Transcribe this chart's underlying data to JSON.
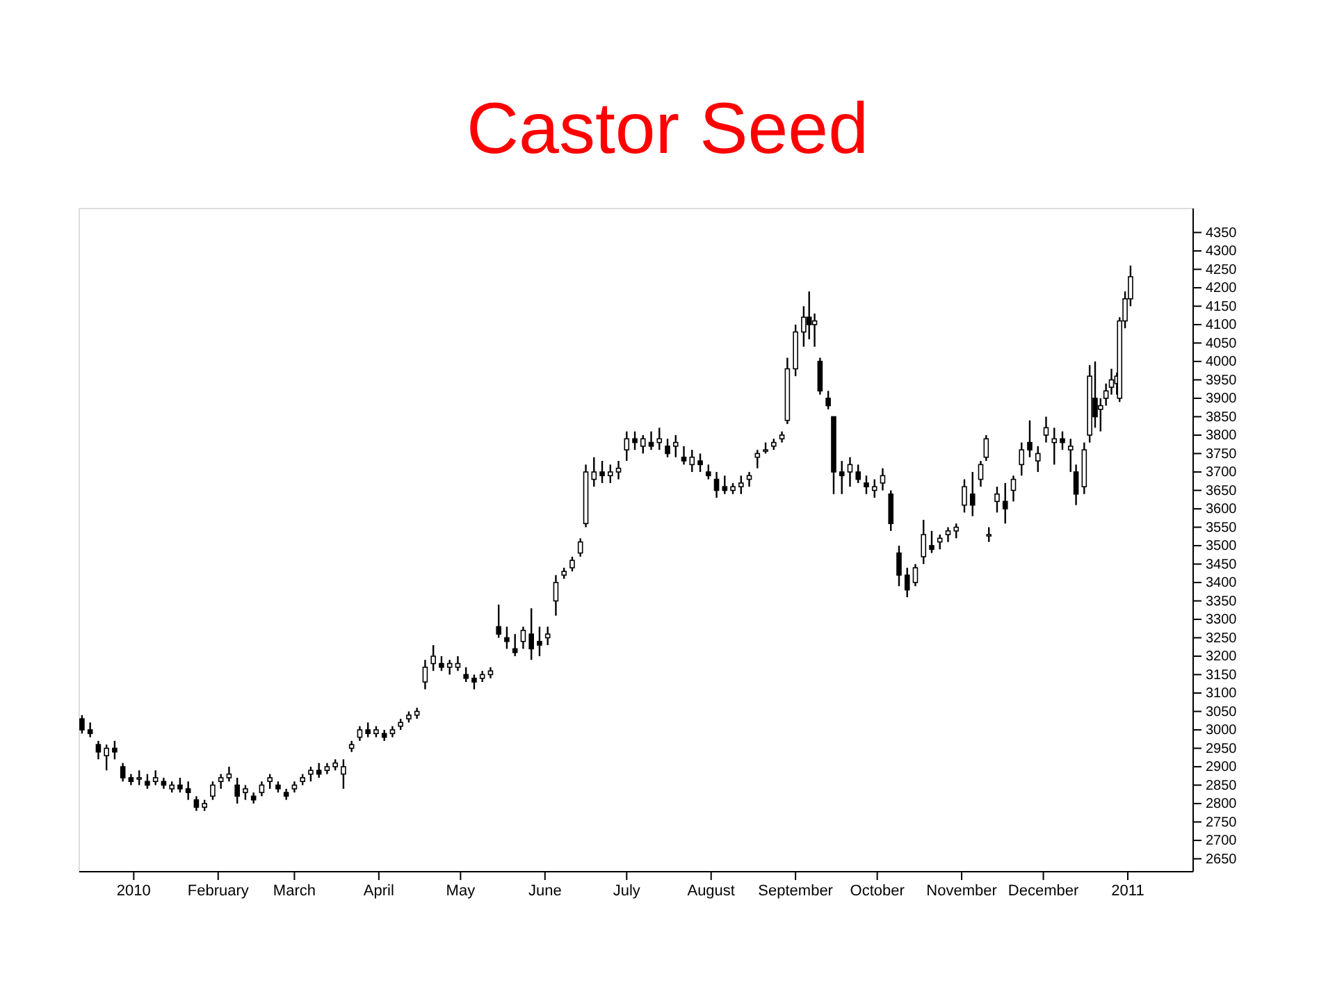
{
  "chart_data": {
    "type": "candlestick",
    "title": "Castor Seed",
    "x": [
      "2009-12-13",
      "2009-12-16",
      "2009-12-19",
      "2009-12-22",
      "2009-12-25",
      "2009-12-28",
      "2009-12-31",
      "2010-01-03",
      "2010-01-06",
      "2010-01-09",
      "2010-01-12",
      "2010-01-15",
      "2010-01-18",
      "2010-01-21",
      "2010-01-24",
      "2010-01-27",
      "2010-01-30",
      "2010-02-02",
      "2010-02-05",
      "2010-02-08",
      "2010-02-11",
      "2010-02-14",
      "2010-02-17",
      "2010-02-20",
      "2010-02-23",
      "2010-02-26",
      "2010-03-01",
      "2010-03-04",
      "2010-03-07",
      "2010-03-10",
      "2010-03-13",
      "2010-03-16",
      "2010-03-19",
      "2010-03-22",
      "2010-03-25",
      "2010-03-28",
      "2010-03-31",
      "2010-04-03",
      "2010-04-06",
      "2010-04-09",
      "2010-04-12",
      "2010-04-15",
      "2010-04-18",
      "2010-04-21",
      "2010-04-24",
      "2010-04-27",
      "2010-04-30",
      "2010-05-03",
      "2010-05-06",
      "2010-05-09",
      "2010-05-12",
      "2010-05-15",
      "2010-05-18",
      "2010-05-21",
      "2010-05-24",
      "2010-05-27",
      "2010-05-30",
      "2010-06-02",
      "2010-06-05",
      "2010-06-08",
      "2010-06-11",
      "2010-06-14",
      "2010-06-16",
      "2010-06-19",
      "2010-06-22",
      "2010-06-25",
      "2010-06-28",
      "2010-07-01",
      "2010-07-04",
      "2010-07-07",
      "2010-07-10",
      "2010-07-13",
      "2010-07-16",
      "2010-07-19",
      "2010-07-22",
      "2010-07-25",
      "2010-07-28",
      "2010-07-31",
      "2010-08-03",
      "2010-08-06",
      "2010-08-09",
      "2010-08-12",
      "2010-08-15",
      "2010-08-18",
      "2010-08-21",
      "2010-08-24",
      "2010-08-27",
      "2010-08-29",
      "2010-09-01",
      "2010-09-04",
      "2010-09-06",
      "2010-09-08",
      "2010-09-10",
      "2010-09-13",
      "2010-09-15",
      "2010-09-18",
      "2010-09-21",
      "2010-09-24",
      "2010-09-27",
      "2010-09-30",
      "2010-10-03",
      "2010-10-06",
      "2010-10-09",
      "2010-10-12",
      "2010-10-15",
      "2010-10-18",
      "2010-10-21",
      "2010-10-24",
      "2010-10-27",
      "2010-10-30",
      "2010-11-02",
      "2010-11-05",
      "2010-11-08",
      "2010-11-10",
      "2010-11-11",
      "2010-11-14",
      "2010-11-17",
      "2010-11-20",
      "2010-11-23",
      "2010-11-26",
      "2010-11-29",
      "2010-12-02",
      "2010-12-05",
      "2010-12-08",
      "2010-12-11",
      "2010-12-13",
      "2010-12-16",
      "2010-12-18",
      "2010-12-20",
      "2010-12-22",
      "2010-12-24",
      "2010-12-26",
      "2010-12-28",
      "2010-12-29",
      "2010-12-31",
      "2011-01-02"
    ],
    "ohlc": [
      [
        3030,
        3040,
        2990,
        3000
      ],
      [
        3000,
        3020,
        2980,
        2990
      ],
      [
        2960,
        2970,
        2920,
        2940
      ],
      [
        2930,
        2960,
        2890,
        2950
      ],
      [
        2950,
        2970,
        2920,
        2940
      ],
      [
        2900,
        2910,
        2860,
        2870
      ],
      [
        2870,
        2880,
        2850,
        2860
      ],
      [
        2870,
        2890,
        2850,
        2870
      ],
      [
        2860,
        2880,
        2840,
        2850
      ],
      [
        2860,
        2890,
        2850,
        2870
      ],
      [
        2860,
        2870,
        2840,
        2850
      ],
      [
        2840,
        2860,
        2830,
        2850
      ],
      [
        2850,
        2870,
        2830,
        2840
      ],
      [
        2840,
        2860,
        2810,
        2830
      ],
      [
        2810,
        2820,
        2780,
        2790
      ],
      [
        2790,
        2810,
        2780,
        2800
      ],
      [
        2820,
        2860,
        2810,
        2850
      ],
      [
        2860,
        2880,
        2840,
        2870
      ],
      [
        2870,
        2900,
        2860,
        2880
      ],
      [
        2850,
        2870,
        2800,
        2820
      ],
      [
        2830,
        2850,
        2810,
        2840
      ],
      [
        2820,
        2830,
        2800,
        2810
      ],
      [
        2830,
        2860,
        2820,
        2850
      ],
      [
        2860,
        2880,
        2840,
        2870
      ],
      [
        2850,
        2860,
        2830,
        2840
      ],
      [
        2830,
        2840,
        2810,
        2820
      ],
      [
        2840,
        2860,
        2830,
        2850
      ],
      [
        2860,
        2880,
        2850,
        2870
      ],
      [
        2880,
        2900,
        2860,
        2890
      ],
      [
        2890,
        2910,
        2870,
        2880
      ],
      [
        2890,
        2910,
        2880,
        2900
      ],
      [
        2900,
        2920,
        2890,
        2910
      ],
      [
        2880,
        2920,
        2840,
        2900
      ],
      [
        2950,
        2970,
        2940,
        2960
      ],
      [
        2980,
        3010,
        2970,
        3000
      ],
      [
        3000,
        3020,
        2980,
        2990
      ],
      [
        2990,
        3010,
        2980,
        3000
      ],
      [
        2990,
        3000,
        2970,
        2980
      ],
      [
        2990,
        3010,
        2980,
        3000
      ],
      [
        3010,
        3030,
        3000,
        3020
      ],
      [
        3030,
        3050,
        3020,
        3040
      ],
      [
        3040,
        3060,
        3030,
        3050
      ],
      [
        3130,
        3190,
        3110,
        3170
      ],
      [
        3180,
        3230,
        3160,
        3200
      ],
      [
        3180,
        3200,
        3160,
        3170
      ],
      [
        3170,
        3190,
        3150,
        3180
      ],
      [
        3170,
        3200,
        3160,
        3180
      ],
      [
        3150,
        3170,
        3130,
        3140
      ],
      [
        3140,
        3150,
        3110,
        3130
      ],
      [
        3140,
        3160,
        3130,
        3150
      ],
      [
        3150,
        3170,
        3140,
        3160
      ],
      [
        3280,
        3340,
        3250,
        3260
      ],
      [
        3250,
        3280,
        3220,
        3240
      ],
      [
        3220,
        3260,
        3200,
        3210
      ],
      [
        3240,
        3280,
        3220,
        3270
      ],
      [
        3260,
        3330,
        3190,
        3220
      ],
      [
        3240,
        3280,
        3200,
        3230
      ],
      [
        3250,
        3280,
        3230,
        3260
      ],
      [
        3350,
        3420,
        3310,
        3400
      ],
      [
        3420,
        3440,
        3410,
        3430
      ],
      [
        3440,
        3470,
        3430,
        3460
      ],
      [
        3480,
        3520,
        3470,
        3510
      ],
      [
        3560,
        3720,
        3550,
        3700
      ],
      [
        3680,
        3740,
        3660,
        3700
      ],
      [
        3700,
        3730,
        3670,
        3690
      ],
      [
        3690,
        3720,
        3670,
        3700
      ],
      [
        3700,
        3730,
        3680,
        3710
      ],
      [
        3760,
        3810,
        3730,
        3790
      ],
      [
        3790,
        3810,
        3760,
        3780
      ],
      [
        3770,
        3800,
        3750,
        3790
      ],
      [
        3780,
        3810,
        3760,
        3770
      ],
      [
        3780,
        3820,
        3760,
        3790
      ],
      [
        3770,
        3790,
        3740,
        3750
      ],
      [
        3770,
        3800,
        3740,
        3780
      ],
      [
        3740,
        3770,
        3720,
        3730
      ],
      [
        3720,
        3760,
        3700,
        3740
      ],
      [
        3730,
        3750,
        3700,
        3720
      ],
      [
        3700,
        3720,
        3680,
        3690
      ],
      [
        3680,
        3700,
        3630,
        3650
      ],
      [
        3660,
        3690,
        3640,
        3650
      ],
      [
        3650,
        3670,
        3640,
        3660
      ],
      [
        3660,
        3690,
        3640,
        3670
      ],
      [
        3680,
        3700,
        3660,
        3690
      ],
      [
        3740,
        3760,
        3710,
        3750
      ],
      [
        3760,
        3780,
        3750,
        3760
      ],
      [
        3770,
        3790,
        3760,
        3780
      ],
      [
        3790,
        3810,
        3780,
        3800
      ],
      [
        3840,
        4010,
        3830,
        3980
      ],
      [
        3980,
        4100,
        3960,
        4080
      ],
      [
        4080,
        4150,
        4040,
        4120
      ],
      [
        4120,
        4190,
        4060,
        4100
      ],
      [
        4100,
        4130,
        4040,
        4110
      ],
      [
        4000,
        4010,
        3910,
        3920
      ],
      [
        3900,
        3920,
        3870,
        3880
      ],
      [
        3850,
        3850,
        3640,
        3700
      ],
      [
        3700,
        3730,
        3640,
        3690
      ],
      [
        3700,
        3740,
        3660,
        3720
      ],
      [
        3700,
        3720,
        3670,
        3680
      ],
      [
        3670,
        3690,
        3640,
        3660
      ],
      [
        3650,
        3680,
        3630,
        3660
      ],
      [
        3670,
        3710,
        3650,
        3690
      ],
      [
        3640,
        3650,
        3540,
        3560
      ],
      [
        3480,
        3500,
        3390,
        3420
      ],
      [
        3420,
        3440,
        3360,
        3380
      ],
      [
        3400,
        3450,
        3390,
        3440
      ],
      [
        3470,
        3570,
        3450,
        3530
      ],
      [
        3500,
        3540,
        3480,
        3490
      ],
      [
        3510,
        3530,
        3490,
        3520
      ],
      [
        3530,
        3550,
        3510,
        3540
      ],
      [
        3540,
        3560,
        3520,
        3550
      ],
      [
        3610,
        3680,
        3590,
        3660
      ],
      [
        3640,
        3700,
        3580,
        3610
      ],
      [
        3680,
        3730,
        3660,
        3720
      ],
      [
        3740,
        3800,
        3730,
        3790
      ],
      [
        3530,
        3550,
        3510,
        3530
      ],
      [
        3620,
        3660,
        3590,
        3640
      ],
      [
        3620,
        3670,
        3560,
        3600
      ],
      [
        3650,
        3690,
        3620,
        3680
      ],
      [
        3720,
        3780,
        3690,
        3760
      ],
      [
        3780,
        3840,
        3740,
        3760
      ],
      [
        3730,
        3770,
        3700,
        3750
      ],
      [
        3800,
        3850,
        3780,
        3820
      ],
      [
        3780,
        3820,
        3720,
        3790
      ],
      [
        3790,
        3810,
        3760,
        3780
      ],
      [
        3760,
        3790,
        3700,
        3770
      ],
      [
        3700,
        3720,
        3610,
        3640
      ],
      [
        3660,
        3780,
        3640,
        3760
      ],
      [
        3800,
        3990,
        3780,
        3960
      ],
      [
        3900,
        4000,
        3820,
        3850
      ],
      [
        3870,
        3900,
        3810,
        3880
      ],
      [
        3900,
        3940,
        3880,
        3920
      ],
      [
        3930,
        3980,
        3910,
        3950
      ],
      [
        3940,
        3970,
        3910,
        3960
      ],
      [
        3900,
        4120,
        3890,
        4110
      ],
      [
        4110,
        4190,
        4090,
        4170
      ],
      [
        4170,
        4260,
        4150,
        4230
      ]
    ],
    "color": "#000000",
    "xlim": [
      "2009-12-12",
      "2011-01-25"
    ],
    "xticks": [
      {
        "value": "2010-01-01",
        "label": "2010"
      },
      {
        "value": "2010-02-01",
        "label": "February"
      },
      {
        "value": "2010-03-01",
        "label": "March"
      },
      {
        "value": "2010-04-01",
        "label": "April"
      },
      {
        "value": "2010-05-01",
        "label": "May"
      },
      {
        "value": "2010-06-01",
        "label": "June"
      },
      {
        "value": "2010-07-01",
        "label": "July"
      },
      {
        "value": "2010-08-01",
        "label": "August"
      },
      {
        "value": "2010-09-01",
        "label": "September"
      },
      {
        "value": "2010-10-01",
        "label": "October"
      },
      {
        "value": "2010-11-01",
        "label": "November"
      },
      {
        "value": "2010-12-01",
        "label": "December"
      },
      {
        "value": "2011-01-01",
        "label": "2011"
      }
    ],
    "ylim": [
      2615,
      4415
    ],
    "yticks": [
      2650,
      2700,
      2750,
      2800,
      2850,
      2900,
      2950,
      3000,
      3050,
      3100,
      3150,
      3200,
      3250,
      3300,
      3350,
      3400,
      3450,
      3500,
      3550,
      3600,
      3650,
      3700,
      3750,
      3800,
      3850,
      3900,
      3950,
      4000,
      4050,
      4100,
      4150,
      4200,
      4250,
      4300,
      4350
    ],
    "grid": false
  }
}
